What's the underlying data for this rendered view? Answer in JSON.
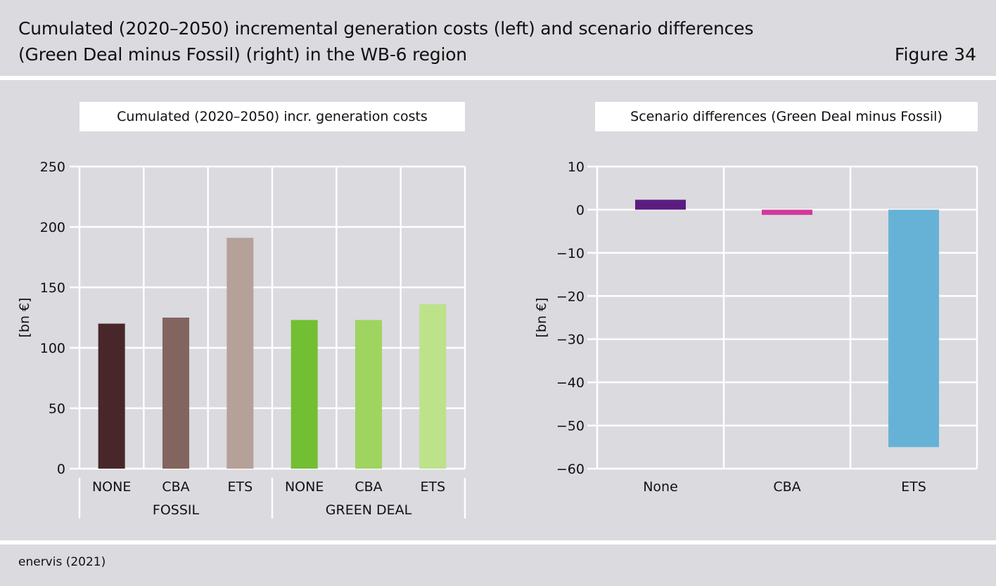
{
  "header": {
    "title_line1": "Cumulated (2020–2050) incremental generation costs (left) and scenario differences",
    "title_line2": "(Green Deal minus Fossil) (right) in the WB-6 region",
    "figure_label": "Figure 34"
  },
  "source": "enervis (2021)",
  "chart_data": [
    {
      "type": "bar",
      "title": "Cumulated (2020–2050) incr. generation costs",
      "ylabel": "[bn €]",
      "ylim": [
        0,
        250
      ],
      "yticks": [
        0,
        50,
        100,
        150,
        200,
        250
      ],
      "grid": true,
      "categories": [
        "NONE",
        "CBA",
        "ETS",
        "NONE",
        "CBA",
        "ETS"
      ],
      "groups": [
        {
          "label": "FOSSIL",
          "span": [
            0,
            2
          ]
        },
        {
          "label": "GREEN DEAL",
          "span": [
            3,
            5
          ]
        }
      ],
      "values": [
        120,
        125,
        191,
        123,
        123,
        136
      ],
      "colors": [
        "#48272a",
        "#82655e",
        "#b5a19a",
        "#72bf33",
        "#9fd460",
        "#bde28a"
      ]
    },
    {
      "type": "bar",
      "title": "Scenario differences (Green Deal minus Fossil)",
      "ylabel": "[bn €]",
      "ylim": [
        -60,
        10
      ],
      "yticks": [
        10,
        0,
        -10,
        -20,
        -30,
        -40,
        -50,
        -60
      ],
      "grid": true,
      "categories": [
        "None",
        "CBA",
        "ETS"
      ],
      "values": [
        2.3,
        -1.2,
        -55
      ],
      "colors": [
        "#5b1c7f",
        "#d2399d",
        "#66b2d6"
      ]
    }
  ]
}
